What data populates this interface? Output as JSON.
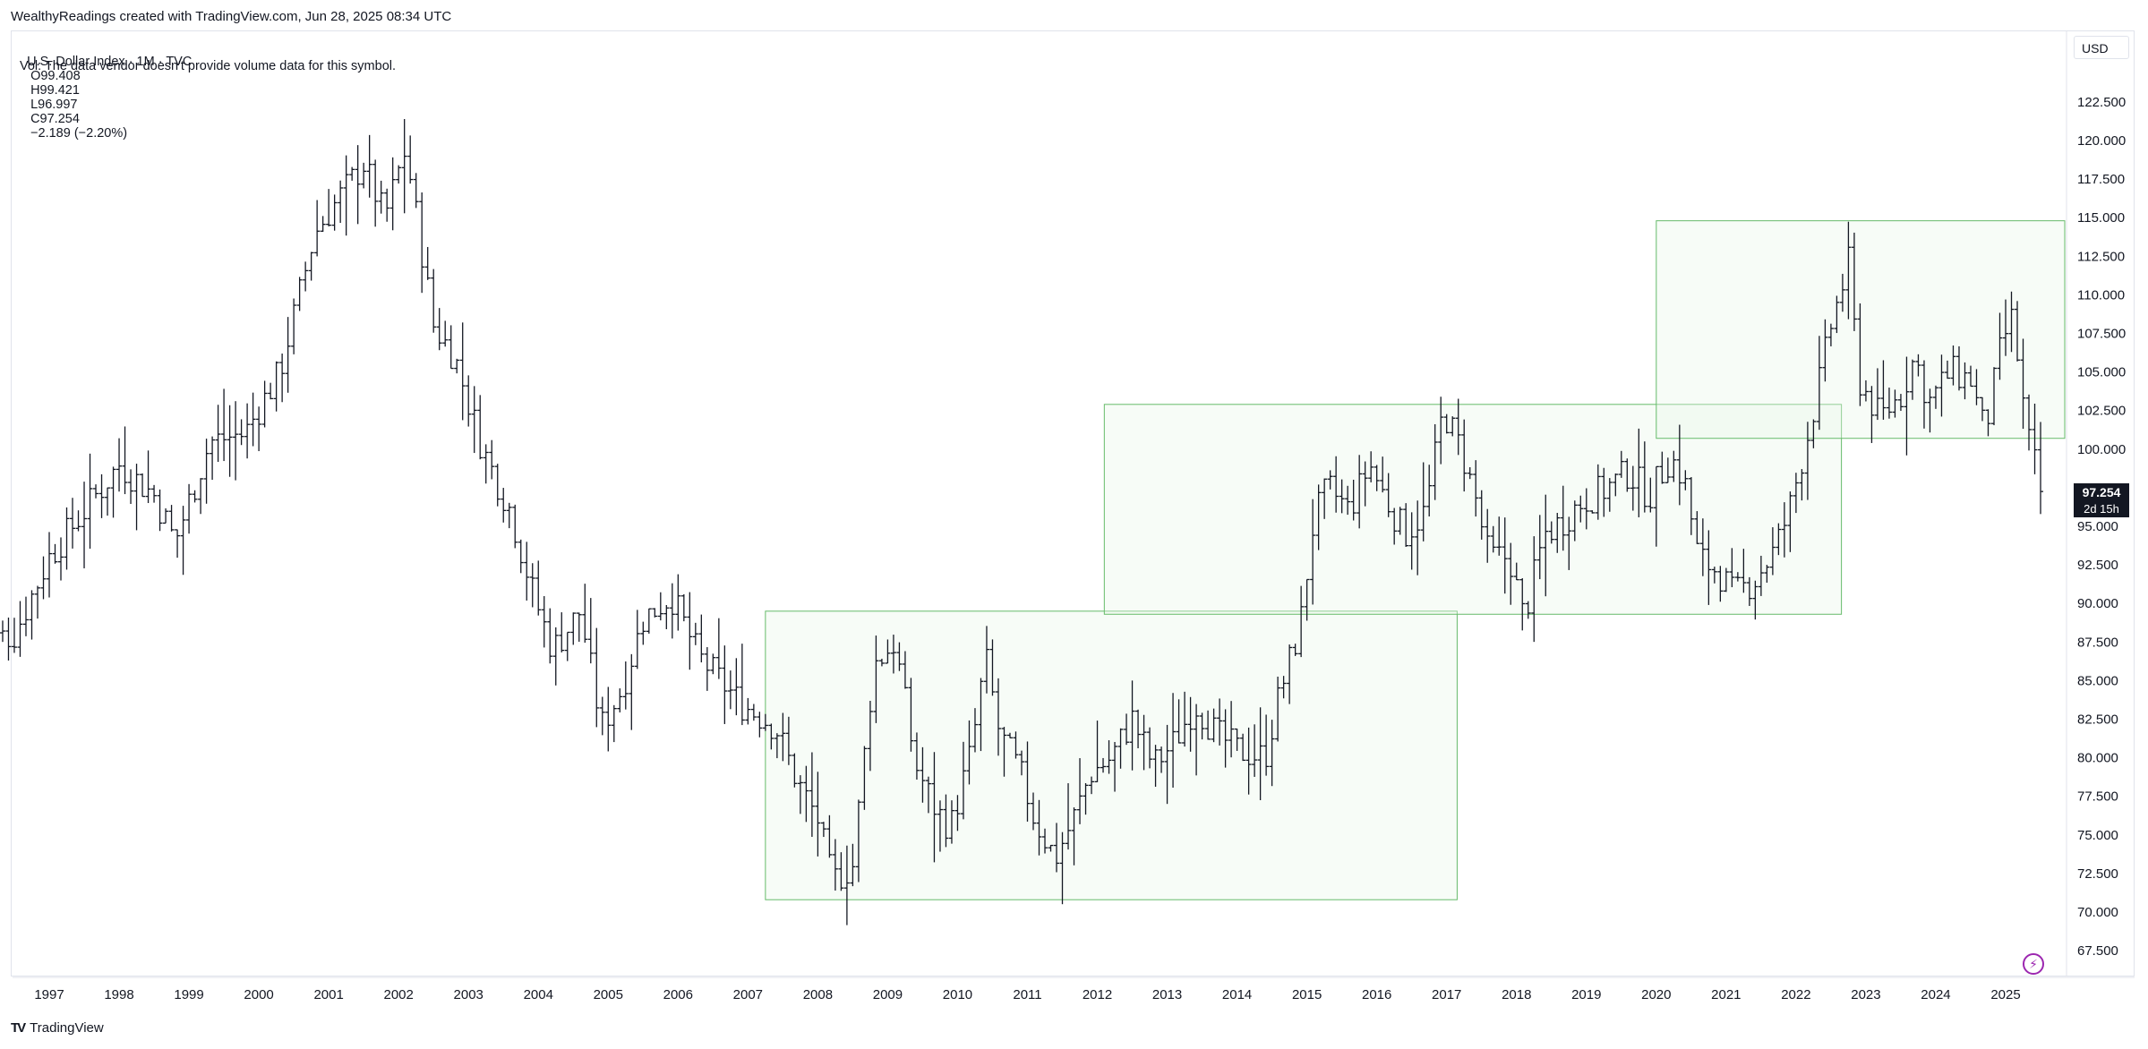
{
  "header": {
    "attribution": "WealthyReadings created with TradingView.com, Jun 28, 2025 08:34 UTC"
  },
  "legend": {
    "symbol": "U.S. Dollar Index · 1M · TVC",
    "open": "O99.408",
    "high": "H99.421",
    "low": "L96.997",
    "close": "C97.254",
    "change": "−2.189 (−2.20%)",
    "volume_note": "Vol: The data vendor doesn't provide volume data for this symbol."
  },
  "price_axis": {
    "currency": "USD",
    "last_price": "97.254",
    "countdown": "2d 15h"
  },
  "footer": {
    "logo_mark": "TV",
    "logo_text": "TradingView"
  },
  "icons": {
    "flash": "flash-icon"
  },
  "colors": {
    "bar": "#131722",
    "zone_border": "#66bb6a",
    "zone_fill": "rgba(232,245,233,0.35)",
    "price_label_bg": "#131722"
  },
  "chart_data": {
    "type": "ohlc",
    "timeframe": "1M",
    "ylim": [
      66,
      123.5
    ],
    "xlim": [
      1996.0,
      2025.92
    ],
    "y_ticks": [
      "67.500",
      "70.000",
      "72.500",
      "75.000",
      "77.500",
      "80.000",
      "82.500",
      "85.000",
      "87.500",
      "90.000",
      "92.500",
      "95.000",
      "97.500",
      "100.000",
      "102.500",
      "105.000",
      "107.500",
      "110.000",
      "112.500",
      "115.000",
      "117.500",
      "120.000",
      "122.500"
    ],
    "x_ticks": [
      "1997",
      "1998",
      "1999",
      "2000",
      "2001",
      "2002",
      "2003",
      "2004",
      "2005",
      "2006",
      "2007",
      "2008",
      "2009",
      "2010",
      "2011",
      "2012",
      "2013",
      "2014",
      "2015",
      "2016",
      "2017",
      "2018",
      "2019",
      "2020",
      "2021",
      "2022",
      "2023",
      "2024",
      "2025"
    ],
    "closes_anchor": [
      [
        1996.0,
        87.5
      ],
      [
        1996.5,
        88.0
      ],
      [
        1997.0,
        93.0
      ],
      [
        1997.5,
        96.0
      ],
      [
        1998.0,
        99.0
      ],
      [
        1998.5,
        97.0
      ],
      [
        1998.8,
        94.0
      ],
      [
        1999.3,
        100.5
      ],
      [
        1999.8,
        101.0
      ],
      [
        2000.3,
        105.0
      ],
      [
        2000.8,
        114.0
      ],
      [
        2001.1,
        116.0
      ],
      [
        2001.5,
        118.5
      ],
      [
        2001.8,
        115.0
      ],
      [
        2002.1,
        119.5
      ],
      [
        2002.5,
        108.0
      ],
      [
        2002.8,
        106.0
      ],
      [
        2003.2,
        100.0
      ],
      [
        2003.6,
        96.0
      ],
      [
        2003.9,
        91.0
      ],
      [
        2004.2,
        87.0
      ],
      [
        2004.6,
        89.5
      ],
      [
        2004.9,
        82.0
      ],
      [
        2005.2,
        84.5
      ],
      [
        2005.5,
        89.0
      ],
      [
        2005.9,
        90.5
      ],
      [
        2006.3,
        86.5
      ],
      [
        2006.6,
        85.0
      ],
      [
        2006.9,
        83.5
      ],
      [
        2007.4,
        82.0
      ],
      [
        2007.7,
        78.5
      ],
      [
        2008.0,
        76.0
      ],
      [
        2008.2,
        72.0
      ],
      [
        2008.5,
        73.0
      ],
      [
        2008.8,
        86.0
      ],
      [
        2009.1,
        87.5
      ],
      [
        2009.4,
        79.5
      ],
      [
        2009.7,
        76.5
      ],
      [
        2009.9,
        75.5
      ],
      [
        2010.2,
        80.5
      ],
      [
        2010.4,
        86.5
      ],
      [
        2010.6,
        81.5
      ],
      [
        2010.9,
        79.0
      ],
      [
        2011.1,
        76.0
      ],
      [
        2011.4,
        73.5
      ],
      [
        2011.7,
        76.5
      ],
      [
        2011.9,
        79.0
      ],
      [
        2012.2,
        80.0
      ],
      [
        2012.5,
        82.5
      ],
      [
        2012.8,
        79.5
      ],
      [
        2013.1,
        81.0
      ],
      [
        2013.4,
        83.5
      ],
      [
        2013.7,
        81.5
      ],
      [
        2014.0,
        80.5
      ],
      [
        2014.4,
        80.0
      ],
      [
        2014.6,
        84.0
      ],
      [
        2014.9,
        88.5
      ],
      [
        2015.1,
        95.5
      ],
      [
        2015.3,
        97.5
      ],
      [
        2015.6,
        96.0
      ],
      [
        2015.9,
        99.0
      ],
      [
        2016.1,
        97.0
      ],
      [
        2016.4,
        94.5
      ],
      [
        2016.7,
        96.0
      ],
      [
        2016.95,
        102.5
      ],
      [
        2017.2,
        100.0
      ],
      [
        2017.4,
        97.0
      ],
      [
        2017.6,
        93.0
      ],
      [
        2017.9,
        93.0
      ],
      [
        2018.1,
        89.0
      ],
      [
        2018.4,
        94.5
      ],
      [
        2018.7,
        95.5
      ],
      [
        2018.9,
        96.5
      ],
      [
        2019.3,
        97.5
      ],
      [
        2019.6,
        98.5
      ],
      [
        2019.9,
        97.0
      ],
      [
        2020.2,
        99.5
      ],
      [
        2020.4,
        98.0
      ],
      [
        2020.6,
        93.0
      ],
      [
        2020.9,
        92.0
      ],
      [
        2021.1,
        90.5
      ],
      [
        2021.4,
        91.5
      ],
      [
        2021.7,
        93.5
      ],
      [
        2021.9,
        96.0
      ],
      [
        2022.2,
        101.5
      ],
      [
        2022.5,
        108.0
      ],
      [
        2022.75,
        112.0
      ],
      [
        2022.9,
        104.5
      ],
      [
        2023.2,
        102.0
      ],
      [
        2023.5,
        103.5
      ],
      [
        2023.7,
        106.0
      ],
      [
        2023.9,
        103.0
      ],
      [
        2024.2,
        105.0
      ],
      [
        2024.5,
        104.5
      ],
      [
        2024.7,
        101.0
      ],
      [
        2024.95,
        107.0
      ],
      [
        2025.1,
        108.5
      ],
      [
        2025.3,
        101.0
      ],
      [
        2025.42,
        99.0
      ],
      [
        2025.49,
        97.254
      ]
    ],
    "zones": [
      {
        "x0": 2007.25,
        "x1": 2017.15,
        "y0": 70.8,
        "y1": 89.5
      },
      {
        "x0": 2012.1,
        "x1": 2022.65,
        "y0": 89.3,
        "y1": 102.9
      },
      {
        "x0": 2020.0,
        "x1": 2025.92,
        "y0": 100.7,
        "y1": 114.8
      }
    ]
  }
}
